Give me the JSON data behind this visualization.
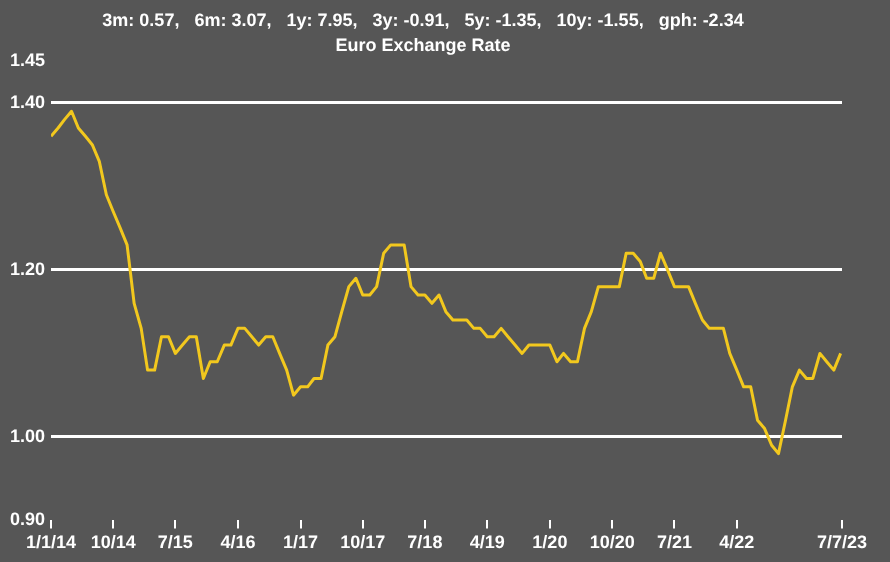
{
  "chart_data": {
    "type": "line",
    "title": "Euro Exchange Rate",
    "subtitle": "3m: 0.57,   6m: 3.07,   1y: 7.95,   3y: -0.91,   5y: -1.35,   10y: -1.55,   gph: -2.34",
    "x": [
      "2014-01",
      "2014-02",
      "2014-03",
      "2014-04",
      "2014-05",
      "2014-06",
      "2014-07",
      "2014-08",
      "2014-09",
      "2014-10",
      "2014-11",
      "2014-12",
      "2015-01",
      "2015-02",
      "2015-03",
      "2015-04",
      "2015-05",
      "2015-06",
      "2015-07",
      "2015-08",
      "2015-09",
      "2015-10",
      "2015-11",
      "2015-12",
      "2016-01",
      "2016-02",
      "2016-03",
      "2016-04",
      "2016-05",
      "2016-06",
      "2016-07",
      "2016-08",
      "2016-09",
      "2016-10",
      "2016-11",
      "2016-12",
      "2017-01",
      "2017-02",
      "2017-03",
      "2017-04",
      "2017-05",
      "2017-06",
      "2017-07",
      "2017-08",
      "2017-09",
      "2017-10",
      "2017-11",
      "2017-12",
      "2018-01",
      "2018-02",
      "2018-03",
      "2018-04",
      "2018-05",
      "2018-06",
      "2018-07",
      "2018-08",
      "2018-09",
      "2018-10",
      "2018-11",
      "2018-12",
      "2019-01",
      "2019-02",
      "2019-03",
      "2019-04",
      "2019-05",
      "2019-06",
      "2019-07",
      "2019-08",
      "2019-09",
      "2019-10",
      "2019-11",
      "2019-12",
      "2020-01",
      "2020-02",
      "2020-03",
      "2020-04",
      "2020-05",
      "2020-06",
      "2020-07",
      "2020-08",
      "2020-09",
      "2020-10",
      "2020-11",
      "2020-12",
      "2021-01",
      "2021-02",
      "2021-03",
      "2021-04",
      "2021-05",
      "2021-06",
      "2021-07",
      "2021-08",
      "2021-09",
      "2021-10",
      "2021-11",
      "2021-12",
      "2022-01",
      "2022-02",
      "2022-03",
      "2022-04",
      "2022-05",
      "2022-06",
      "2022-07",
      "2022-08",
      "2022-09",
      "2022-10",
      "2022-11",
      "2022-12",
      "2023-01",
      "2023-02",
      "2023-03",
      "2023-04",
      "2023-05",
      "2023-06",
      "2023-07"
    ],
    "series": [
      {
        "color": "#f2c81e",
        "values": [
          1.36,
          1.37,
          1.38,
          1.39,
          1.37,
          1.36,
          1.35,
          1.33,
          1.29,
          1.27,
          1.25,
          1.23,
          1.16,
          1.13,
          1.08,
          1.08,
          1.12,
          1.12,
          1.1,
          1.11,
          1.12,
          1.12,
          1.07,
          1.09,
          1.09,
          1.11,
          1.11,
          1.13,
          1.13,
          1.12,
          1.11,
          1.12,
          1.12,
          1.1,
          1.08,
          1.05,
          1.06,
          1.06,
          1.07,
          1.07,
          1.11,
          1.12,
          1.15,
          1.18,
          1.19,
          1.17,
          1.17,
          1.18,
          1.22,
          1.23,
          1.23,
          1.23,
          1.18,
          1.17,
          1.17,
          1.16,
          1.17,
          1.15,
          1.14,
          1.14,
          1.14,
          1.13,
          1.13,
          1.12,
          1.12,
          1.13,
          1.12,
          1.11,
          1.1,
          1.11,
          1.11,
          1.11,
          1.11,
          1.09,
          1.1,
          1.09,
          1.09,
          1.13,
          1.15,
          1.18,
          1.18,
          1.18,
          1.18,
          1.22,
          1.22,
          1.21,
          1.19,
          1.19,
          1.22,
          1.2,
          1.18,
          1.18,
          1.18,
          1.16,
          1.14,
          1.13,
          1.13,
          1.13,
          1.1,
          1.08,
          1.06,
          1.06,
          1.02,
          1.01,
          0.99,
          0.98,
          1.02,
          1.06,
          1.08,
          1.07,
          1.07,
          1.1,
          1.09,
          1.08,
          1.1
        ]
      }
    ],
    "xlim": [
      "2014-01-01",
      "2023-07-07"
    ],
    "xticks": [
      {
        "value": "2014-01-01",
        "label": "1/1/14"
      },
      {
        "value": "2014-10-01",
        "label": "10/14"
      },
      {
        "value": "2015-07-01",
        "label": "7/15"
      },
      {
        "value": "2016-04-01",
        "label": "4/16"
      },
      {
        "value": "2017-01-01",
        "label": "1/17"
      },
      {
        "value": "2017-10-01",
        "label": "10/17"
      },
      {
        "value": "2018-07-01",
        "label": "7/18"
      },
      {
        "value": "2019-04-01",
        "label": "4/19"
      },
      {
        "value": "2020-01-01",
        "label": "1/20"
      },
      {
        "value": "2020-10-01",
        "label": "10/20"
      },
      {
        "value": "2021-07-01",
        "label": "7/21"
      },
      {
        "value": "2022-04-01",
        "label": "4/22"
      },
      {
        "value": "2023-07-07",
        "label": "7/7/23"
      }
    ],
    "ylim": [
      0.9,
      1.45
    ],
    "yticks": [
      {
        "value": 0.9,
        "label": "0.90"
      },
      {
        "value": 1.0,
        "label": "1.00"
      },
      {
        "value": 1.2,
        "label": "1.20"
      },
      {
        "value": 1.4,
        "label": "1.40"
      },
      {
        "value": 1.45,
        "label": "1.45"
      }
    ],
    "grid": "y",
    "legend": false,
    "marker": "none",
    "line_style": "solid"
  }
}
